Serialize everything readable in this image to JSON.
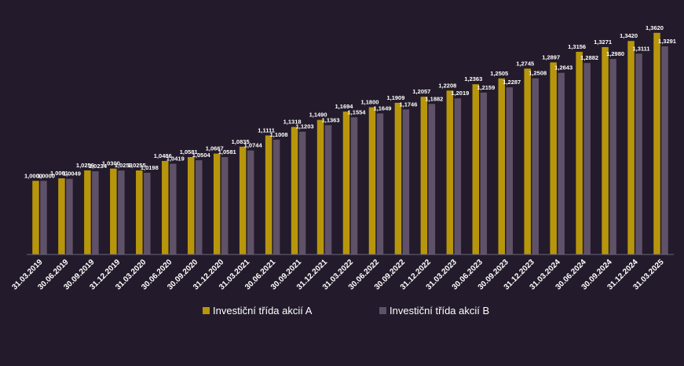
{
  "chart_data": {
    "type": "bar",
    "categories": [
      "31.03.2019",
      "30.06.2019",
      "30.09.2019",
      "31.12.2019",
      "31.03.2020",
      "30.06.2020",
      "30.09.2020",
      "31.12.2020",
      "31.03.2021",
      "30.06.2021",
      "30.09.2021",
      "31.12.2021",
      "31.03.2022",
      "30.06.2022",
      "30.09.2022",
      "31.12.2022",
      "31.03.2023",
      "30.06.2023",
      "30.09.2023",
      "31.12.2023",
      "31.03.2024",
      "30.06.2024",
      "30.09.2024",
      "31.12.2024",
      "31.03.2025"
    ],
    "series": [
      {
        "name": "Investiční třída akcií A",
        "color": "#b8960c",
        "values": [
          1.0,
          1.0061,
          1.0256,
          1.03,
          1.0255,
          1.0486,
          1.0581,
          1.0667,
          1.0835,
          1.1111,
          1.1318,
          1.149,
          1.1694,
          1.18,
          1.1909,
          1.2057,
          1.2208,
          1.2363,
          1.2505,
          1.2745,
          1.2897,
          1.3156,
          1.3271,
          1.342,
          1.362
        ],
        "labels": [
          "1,0000",
          "1,0061",
          "1,0256",
          "1,0300",
          "1,0255",
          "1,0486",
          "1,0581",
          "1,0667",
          "1,0835",
          "1,1111",
          "1,1318",
          "1,1490",
          "1,1694",
          "1,1800",
          "1,1909",
          "1,2057",
          "1,2208",
          "1,2363",
          "1,2505",
          "1,2745",
          "1,2897",
          "1,3156",
          "1,3271",
          "1,3420",
          "1,3620"
        ]
      },
      {
        "name": "Investiční třída akcií B",
        "color": "#5f5168",
        "values": [
          1.0,
          1.0049,
          1.0234,
          1.0253,
          1.0198,
          1.0419,
          1.0504,
          1.0581,
          1.0744,
          1.1008,
          1.1203,
          1.1363,
          1.1554,
          1.1649,
          1.1746,
          1.1882,
          1.2019,
          1.2159,
          1.2287,
          1.2508,
          1.2643,
          1.2882,
          1.298,
          1.3111,
          1.3291
        ],
        "labels": [
          "1,0000",
          "1,0049",
          "1,0234",
          "1,0253",
          "1,0198",
          "1,0419",
          "1,0504",
          "1,0581",
          "1,0744",
          "1,1008",
          "1,1203",
          "1,1363",
          "1,1554",
          "1,1649",
          "1,1746",
          "1,1882",
          "1,2019",
          "1,2159",
          "1,2287",
          "1,2508",
          "1,2643",
          "1,2882",
          "1,2980",
          "1,3111",
          "1,3291"
        ]
      }
    ],
    "ylim": [
      0.82,
      1.4
    ],
    "grid": false,
    "legend": "bottom-center",
    "axis_color": "#6e6478",
    "background": "#231b2b"
  }
}
